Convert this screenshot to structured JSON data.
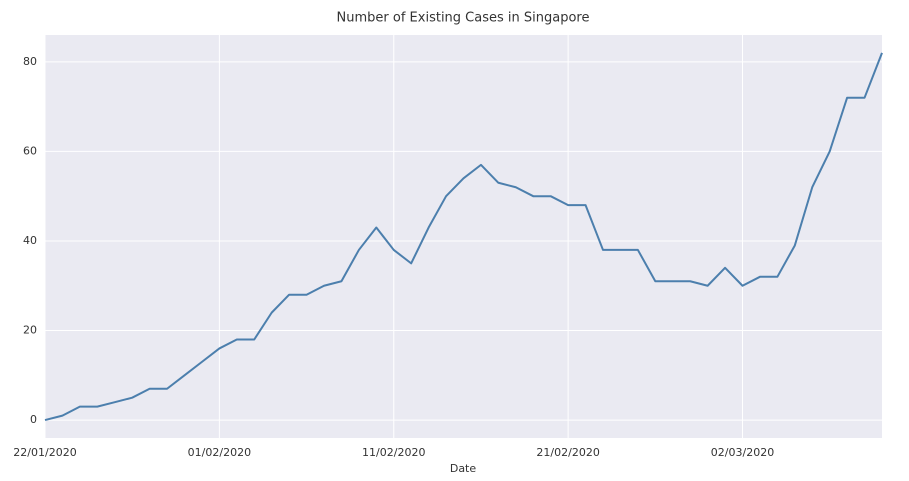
{
  "chart_data": {
    "type": "line",
    "title": "Number of Existing Cases in Singapore",
    "x_label": "Date",
    "x": [
      "22/01/2020",
      "23/01/2020",
      "24/01/2020",
      "25/01/2020",
      "26/01/2020",
      "27/01/2020",
      "28/01/2020",
      "29/01/2020",
      "30/01/2020",
      "31/01/2020",
      "01/02/2020",
      "02/02/2020",
      "03/02/2020",
      "04/02/2020",
      "05/02/2020",
      "06/02/2020",
      "07/02/2020",
      "08/02/2020",
      "09/02/2020",
      "10/02/2020",
      "11/02/2020",
      "12/02/2020",
      "13/02/2020",
      "14/02/2020",
      "15/02/2020",
      "16/02/2020",
      "17/02/2020",
      "18/02/2020",
      "19/02/2020",
      "20/02/2020",
      "21/02/2020",
      "22/02/2020",
      "23/02/2020",
      "24/02/2020",
      "25/02/2020",
      "26/02/2020",
      "27/02/2020",
      "28/02/2020",
      "29/02/2020",
      "01/03/2020",
      "02/03/2020",
      "03/03/2020",
      "04/03/2020",
      "05/03/2020",
      "06/03/2020",
      "07/03/2020",
      "08/03/2020",
      "09/03/2020",
      "10/03/2020"
    ],
    "series": [
      {
        "name": "Existing Cases",
        "color": "#4c7fad",
        "values": [
          0,
          1,
          3,
          3,
          4,
          5,
          7,
          7,
          10,
          13,
          16,
          18,
          18,
          24,
          28,
          28,
          30,
          31,
          38,
          43,
          38,
          35,
          43,
          50,
          54,
          57,
          53,
          52,
          50,
          50,
          48,
          48,
          38,
          38,
          38,
          31,
          31,
          31,
          30,
          34,
          30,
          32,
          32,
          39,
          52,
          60,
          72,
          72,
          82
        ]
      }
    ],
    "xlim": [
      "22/01/2020",
      "10/03/2020"
    ],
    "xticks": [
      "22/01/2020",
      "01/02/2020",
      "11/02/2020",
      "21/02/2020",
      "02/03/2020"
    ],
    "ylim": [
      -4,
      86
    ],
    "yticks": [
      0,
      20,
      40,
      60,
      80
    ],
    "grid": true
  }
}
